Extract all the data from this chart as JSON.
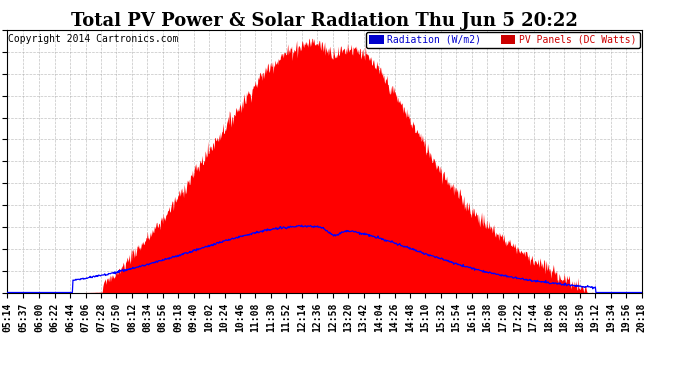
{
  "title": "Total PV Power & Solar Radiation Thu Jun 5 20:22",
  "copyright": "Copyright 2014 Cartronics.com",
  "legend_radiation": "Radiation (W/m2)",
  "legend_pv": "PV Panels (DC Watts)",
  "legend_radiation_bg": "#0000cc",
  "legend_pv_bg": "#cc0000",
  "background_color": "#ffffff",
  "plot_bg_color": "#ffffff",
  "grid_color": "#aaaaaa",
  "y_min": 0.0,
  "y_max": 3066.5,
  "y_ticks": [
    0.0,
    255.5,
    511.1,
    766.6,
    1022.2,
    1277.7,
    1533.2,
    1788.8,
    2044.3,
    2299.8,
    2555.4,
    2810.9,
    3066.5
  ],
  "title_fontsize": 13,
  "tick_fontsize": 7,
  "copyright_fontsize": 7,
  "radiation_color": "#0000ff",
  "pv_color": "#ff0000",
  "x_labels": [
    "05:14",
    "05:37",
    "06:00",
    "06:22",
    "06:44",
    "07:06",
    "07:28",
    "07:50",
    "08:12",
    "08:34",
    "08:56",
    "09:18",
    "09:40",
    "10:02",
    "10:24",
    "10:46",
    "11:08",
    "11:30",
    "11:52",
    "12:14",
    "12:36",
    "12:58",
    "13:20",
    "13:42",
    "14:04",
    "14:26",
    "14:48",
    "15:10",
    "15:32",
    "15:54",
    "16:16",
    "16:38",
    "17:00",
    "17:22",
    "17:44",
    "18:06",
    "18:28",
    "18:50",
    "19:12",
    "19:34",
    "19:56",
    "20:18"
  ]
}
